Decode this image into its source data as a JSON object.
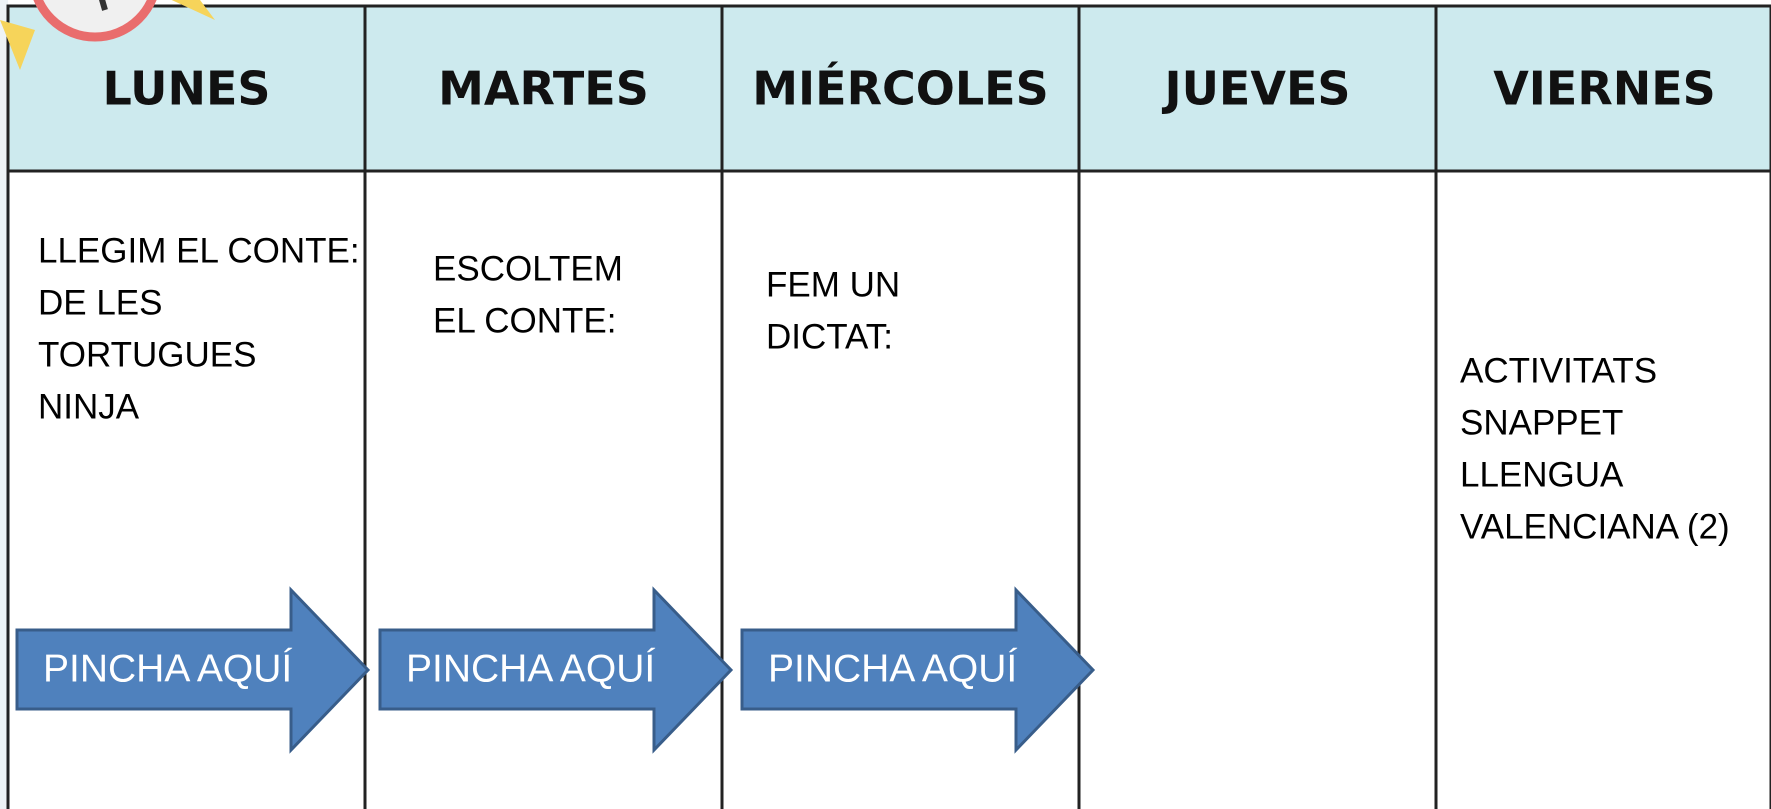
{
  "header": {
    "days": [
      "LUNES",
      "MARTES",
      "MIÉRCOLES",
      "JUEVES",
      "VIERNES"
    ]
  },
  "cells": [
    {
      "lines": [
        "LLEGIM EL CONTE:",
        "DE LES",
        "TORTUGUES",
        "NINJA"
      ]
    },
    {
      "lines": [
        "ESCOLTEM",
        "EL CONTE:"
      ]
    },
    {
      "lines": [
        "FEM UN",
        "DICTAT:"
      ]
    },
    {
      "lines": [
        "ACTIVITATS",
        "SNAPPET",
        "LLENGUA",
        "VALENCIANA (2)"
      ]
    }
  ],
  "buttons": [
    {
      "label": "PINCHA AQUÍ"
    },
    {
      "label": "PINCHA AQUÍ"
    },
    {
      "label": "PINCHA AQUÍ"
    }
  ]
}
